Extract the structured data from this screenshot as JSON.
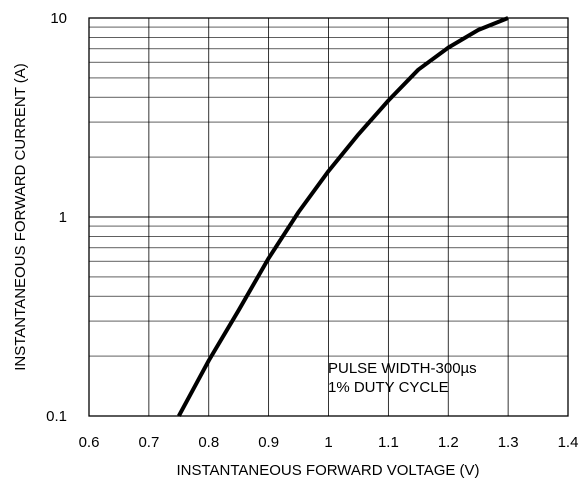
{
  "chart_data": {
    "type": "line",
    "title": "",
    "xlabel": "INSTANTANEOUS FORWARD VOLTAGE (V)",
    "ylabel": "INSTANTANEOUS FORWARD CURRENT (A)",
    "xlim": [
      0.6,
      1.4
    ],
    "ylim": [
      0.1,
      10
    ],
    "yscale": "log",
    "grid": true,
    "xticks": [
      0.6,
      0.7,
      0.8,
      0.9,
      1.0,
      1.1,
      1.2,
      1.3,
      1.4
    ],
    "xtick_labels": [
      "0.6",
      "0.7",
      "0.8",
      "0.9",
      "1",
      "1.1",
      "1.2",
      "1.3",
      "1.4"
    ],
    "yticks": [
      0.1,
      1,
      10
    ],
    "ytick_labels": [
      "0.1",
      "1",
      "10"
    ],
    "annotations": [
      "PULSE WIDTH-300µs",
      "1% DUTY CYCLE"
    ],
    "series": [
      {
        "x": [
          0.75,
          0.8,
          0.85,
          0.9,
          0.95,
          1.0,
          1.05,
          1.1,
          1.15,
          1.2,
          1.25,
          1.3
        ],
        "y": [
          0.1,
          0.19,
          0.34,
          0.62,
          1.06,
          1.7,
          2.6,
          3.85,
          5.5,
          7.1,
          8.7,
          10
        ]
      }
    ]
  }
}
